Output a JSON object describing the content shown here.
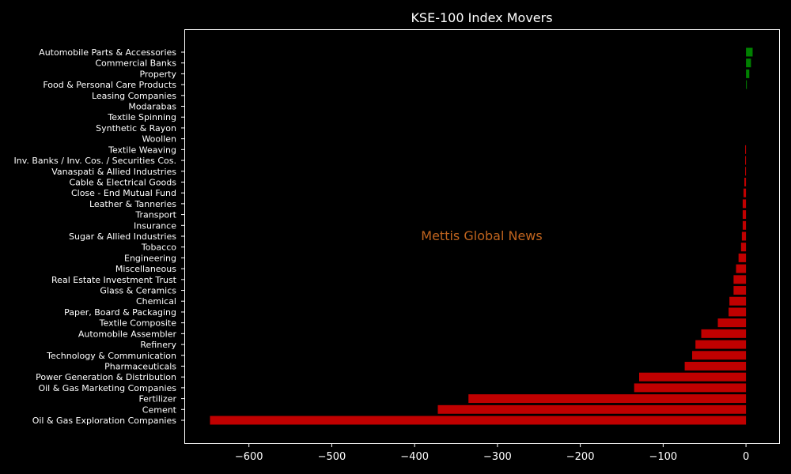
{
  "chart_data": {
    "type": "bar",
    "orientation": "horizontal",
    "title": "KSE-100 Index Movers",
    "watermark": "Mettis Global News",
    "xlabel": "",
    "ylabel": "",
    "xlim": [
      -678,
      40
    ],
    "xticks": [
      -600,
      -500,
      -400,
      -300,
      -200,
      -100,
      0
    ],
    "xtick_labels": [
      "−600",
      "−500",
      "−400",
      "−300",
      "−200",
      "−100",
      "0"
    ],
    "grid": false,
    "legend": "none",
    "categories": [
      "Automobile Parts & Accessories",
      "Commercial Banks",
      "Property",
      "Food & Personal Care Products",
      "Leasing Companies",
      "Modarabas",
      "Textile Spinning",
      "Synthetic & Rayon",
      "Woollen",
      "Textile Weaving",
      "Inv. Banks / Inv. Cos. / Securities Cos.",
      "Vanaspati & Allied Industries",
      "Cable & Electrical Goods",
      "Close - End Mutual Fund",
      "Leather & Tanneries",
      "Transport",
      "Insurance",
      "Sugar & Allied Industries",
      "Tobacco",
      "Engineering",
      "Miscellaneous",
      "Real Estate Investment Trust",
      "Glass & Ceramics",
      "Chemical",
      "Paper, Board & Packaging",
      "Textile Composite",
      "Automobile Assembler",
      "Refinery",
      "Technology & Communication",
      "Pharmaceuticals",
      "Power Generation & Distribution",
      "Oil & Gas Marketing Companies",
      "Fertilizer",
      "Cement",
      "Oil & Gas Exploration Companies"
    ],
    "values": [
      8,
      6,
      4,
      1,
      0,
      0,
      0,
      0,
      0,
      -1,
      -1,
      -1,
      -2,
      -3,
      -4,
      -4,
      -4,
      -5,
      -6,
      -9,
      -12,
      -15,
      -15,
      -20,
      -21,
      -34,
      -54,
      -61,
      -65,
      -74,
      -129,
      -135,
      -335,
      -372,
      -647
    ],
    "colors": {
      "positive": "#008000",
      "negative": "#c00000",
      "background": "#000000",
      "axes": "#ffffff"
    }
  }
}
